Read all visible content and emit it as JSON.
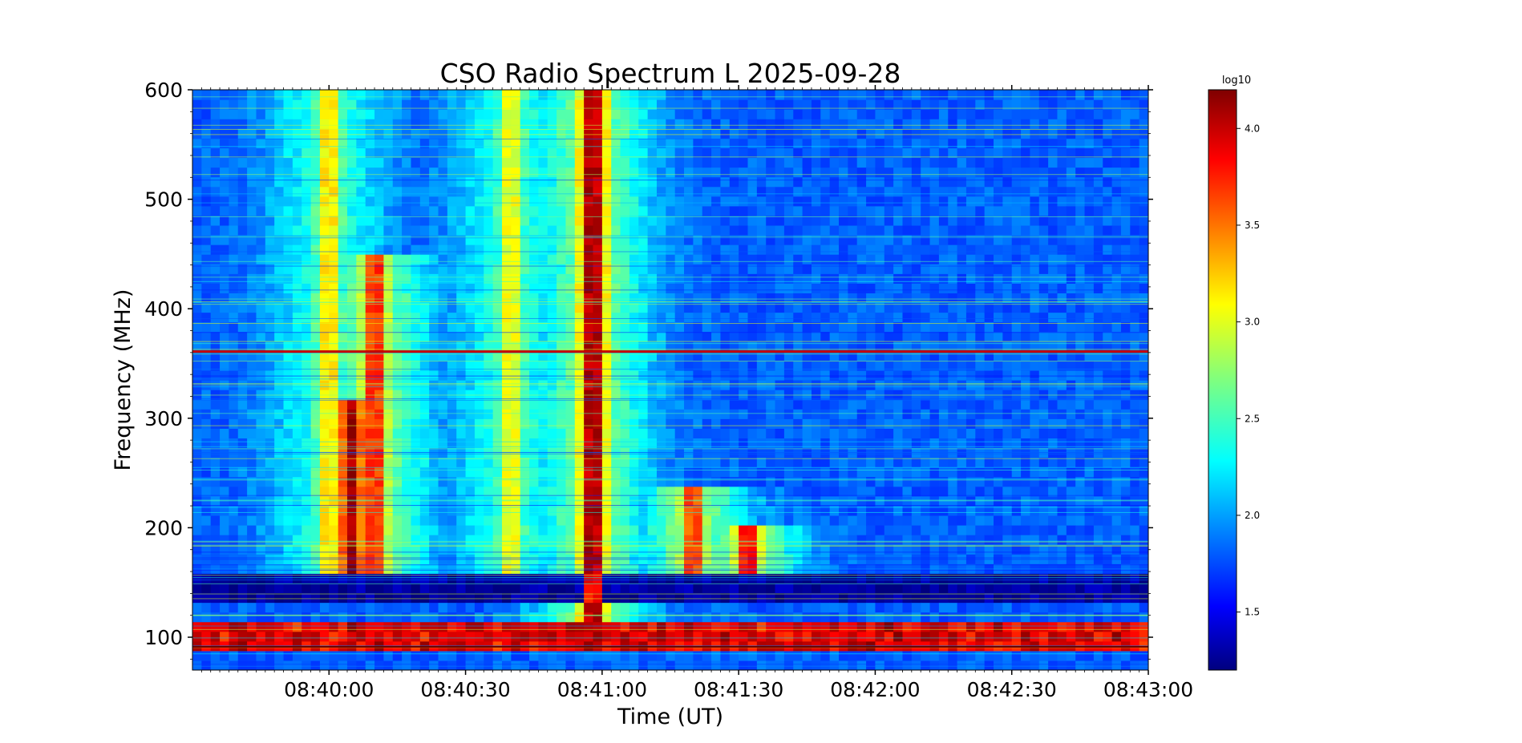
{
  "chart_data": {
    "type": "heatmap",
    "title": "CSO Radio Spectrum L 2025-09-28",
    "xlabel": "Time (UT)",
    "ylabel": "Frequency (MHz)",
    "x_start": "08:39:30",
    "x_end": "08:43:00",
    "xticks": [
      "08:40:00",
      "08:40:30",
      "08:41:00",
      "08:41:30",
      "08:42:00",
      "08:42:30",
      "08:43:00"
    ],
    "ylim": [
      70,
      600
    ],
    "yticks": [
      100,
      200,
      300,
      400,
      500,
      600
    ],
    "colorbar": {
      "label": "log10",
      "colormap": "jet",
      "range": [
        1.2,
        4.2
      ],
      "ticks": [
        "1.5",
        "2.0",
        "2.5",
        "3.0",
        "3.5",
        "4.0"
      ]
    },
    "bursts": [
      {
        "time": "08:40:00",
        "freq_range": [
          160,
          600
        ],
        "peak_log10": 3.2
      },
      {
        "time": "08:40:05",
        "freq_range": [
          160,
          320
        ],
        "peak_log10": 4.1
      },
      {
        "time": "08:40:10",
        "freq_range": [
          160,
          450
        ],
        "peak_log10": 3.8
      },
      {
        "time": "08:40:40",
        "freq_range": [
          160,
          600
        ],
        "peak_log10": 3.1
      },
      {
        "time": "08:40:58",
        "freq_range": [
          90,
          600
        ],
        "peak_log10": 4.2
      },
      {
        "time": "08:41:20",
        "freq_range": [
          160,
          240
        ],
        "peak_log10": 3.7
      },
      {
        "time": "08:41:32",
        "freq_range": [
          160,
          200
        ],
        "peak_log10": 3.9
      }
    ],
    "bands": [
      {
        "freq_range": [
          87,
          110
        ],
        "log10": 4.0
      },
      {
        "freq_range": [
          136,
          160
        ],
        "log10": 1.3
      },
      {
        "freq_range": [
          360,
          364
        ],
        "log10": 3.9
      }
    ]
  }
}
